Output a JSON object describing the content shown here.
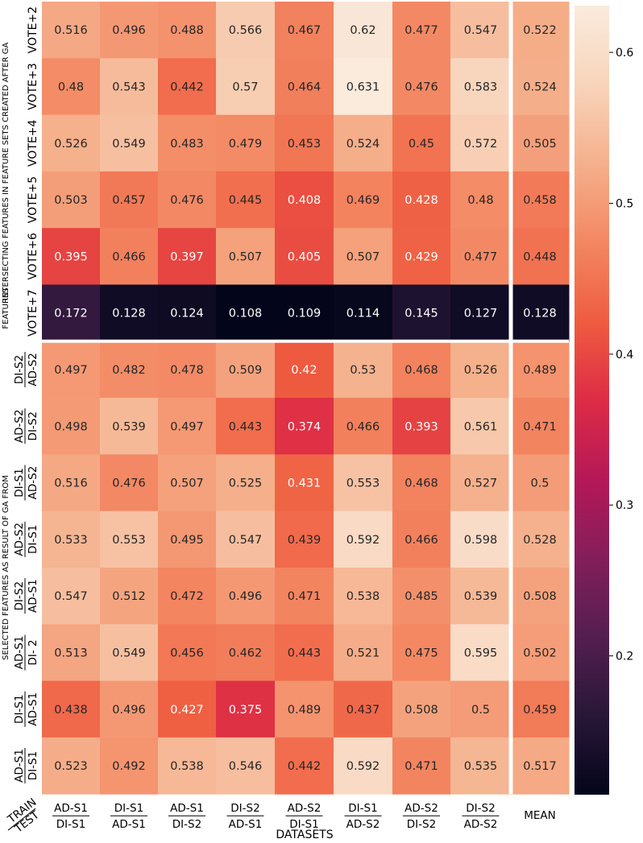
{
  "chart_data": {
    "type": "heatmap",
    "xlabel": "DATASETS",
    "corner_label": {
      "top": "TRAIN",
      "bottom": "TEST"
    },
    "columns": [
      {
        "top": "AD-S1",
        "bottom": "DI-S1"
      },
      {
        "top": "DI-S1",
        "bottom": "AD-S1"
      },
      {
        "top": "AD-S1",
        "bottom": "DI-S2"
      },
      {
        "top": "DI-S2",
        "bottom": "AD-S1"
      },
      {
        "top": "AD-S2",
        "bottom": "DI-S1"
      },
      {
        "top": "DI-S1",
        "bottom": "AD-S2"
      },
      {
        "top": "AD-S2",
        "bottom": "DI-S2"
      },
      {
        "top": "DI-S2",
        "bottom": "AD-S2"
      },
      {
        "top": "MEAN"
      }
    ],
    "groups": [
      {
        "label_lines": [
          "FEATURES",
          "INTERSECTING FEATURES IN FEATURE SETS CREATED AFTER GA"
        ],
        "rows": [
          {
            "label": "VOTE+2",
            "values": [
              0.516,
              0.496,
              0.488,
              0.566,
              0.467,
              0.62,
              0.477,
              0.547,
              0.522
            ]
          },
          {
            "label": "VOTE+3",
            "values": [
              0.48,
              0.543,
              0.442,
              0.57,
              0.464,
              0.631,
              0.476,
              0.583,
              0.524
            ]
          },
          {
            "label": "VOTE+4",
            "values": [
              0.526,
              0.549,
              0.483,
              0.479,
              0.453,
              0.524,
              0.45,
              0.572,
              0.505
            ]
          },
          {
            "label": "VOTE+5",
            "values": [
              0.503,
              0.457,
              0.476,
              0.445,
              0.408,
              0.469,
              0.428,
              0.48,
              0.458
            ]
          },
          {
            "label": "VOTE+6",
            "values": [
              0.395,
              0.466,
              0.397,
              0.507,
              0.405,
              0.507,
              0.429,
              0.477,
              0.448
            ]
          },
          {
            "label": "VOTE+7",
            "values": [
              0.172,
              0.128,
              0.124,
              0.108,
              0.109,
              0.114,
              0.145,
              0.127,
              0.128
            ]
          }
        ]
      },
      {
        "label_lines": [
          "SELECTED FEATURES AS  RESULT OF GA FROM"
        ],
        "rows": [
          {
            "top": "DI-S2",
            "bottom": "AD-S2",
            "values": [
              0.497,
              0.482,
              0.478,
              0.509,
              0.42,
              0.53,
              0.468,
              0.526,
              0.489
            ]
          },
          {
            "top": "AD-S2",
            "bottom": "DI-S2",
            "values": [
              0.498,
              0.539,
              0.497,
              0.443,
              0.374,
              0.466,
              0.393,
              0.561,
              0.471
            ]
          },
          {
            "top": "DI-S1",
            "bottom": "AD-S2",
            "values": [
              0.516,
              0.476,
              0.507,
              0.525,
              0.431,
              0.553,
              0.468,
              0.527,
              0.5
            ]
          },
          {
            "top": "AD-S2",
            "bottom": "DI-S1",
            "values": [
              0.533,
              0.553,
              0.495,
              0.547,
              0.439,
              0.592,
              0.466,
              0.598,
              0.528
            ]
          },
          {
            "top": "DI-S2",
            "bottom": "AD-S1",
            "values": [
              0.547,
              0.512,
              0.472,
              0.496,
              0.471,
              0.538,
              0.485,
              0.539,
              0.508
            ]
          },
          {
            "top": "AD-S1",
            "bottom": "DI- 2",
            "values": [
              0.513,
              0.549,
              0.456,
              0.462,
              0.443,
              0.521,
              0.475,
              0.595,
              0.502
            ]
          },
          {
            "top": "DI-S1",
            "bottom": "AD-S1",
            "values": [
              0.438,
              0.496,
              0.427,
              0.375,
              0.489,
              0.437,
              0.508,
              0.5,
              0.459
            ]
          },
          {
            "top": "AD-S1",
            "bottom": "DI-S1",
            "values": [
              0.523,
              0.492,
              0.538,
              0.546,
              0.442,
              0.592,
              0.471,
              0.535,
              0.517
            ]
          }
        ]
      }
    ],
    "colorbar": {
      "colormap": "rocket",
      "range": [
        0.108,
        0.631
      ],
      "ticks": [
        0.2,
        0.3,
        0.4,
        0.5,
        0.6
      ]
    }
  }
}
